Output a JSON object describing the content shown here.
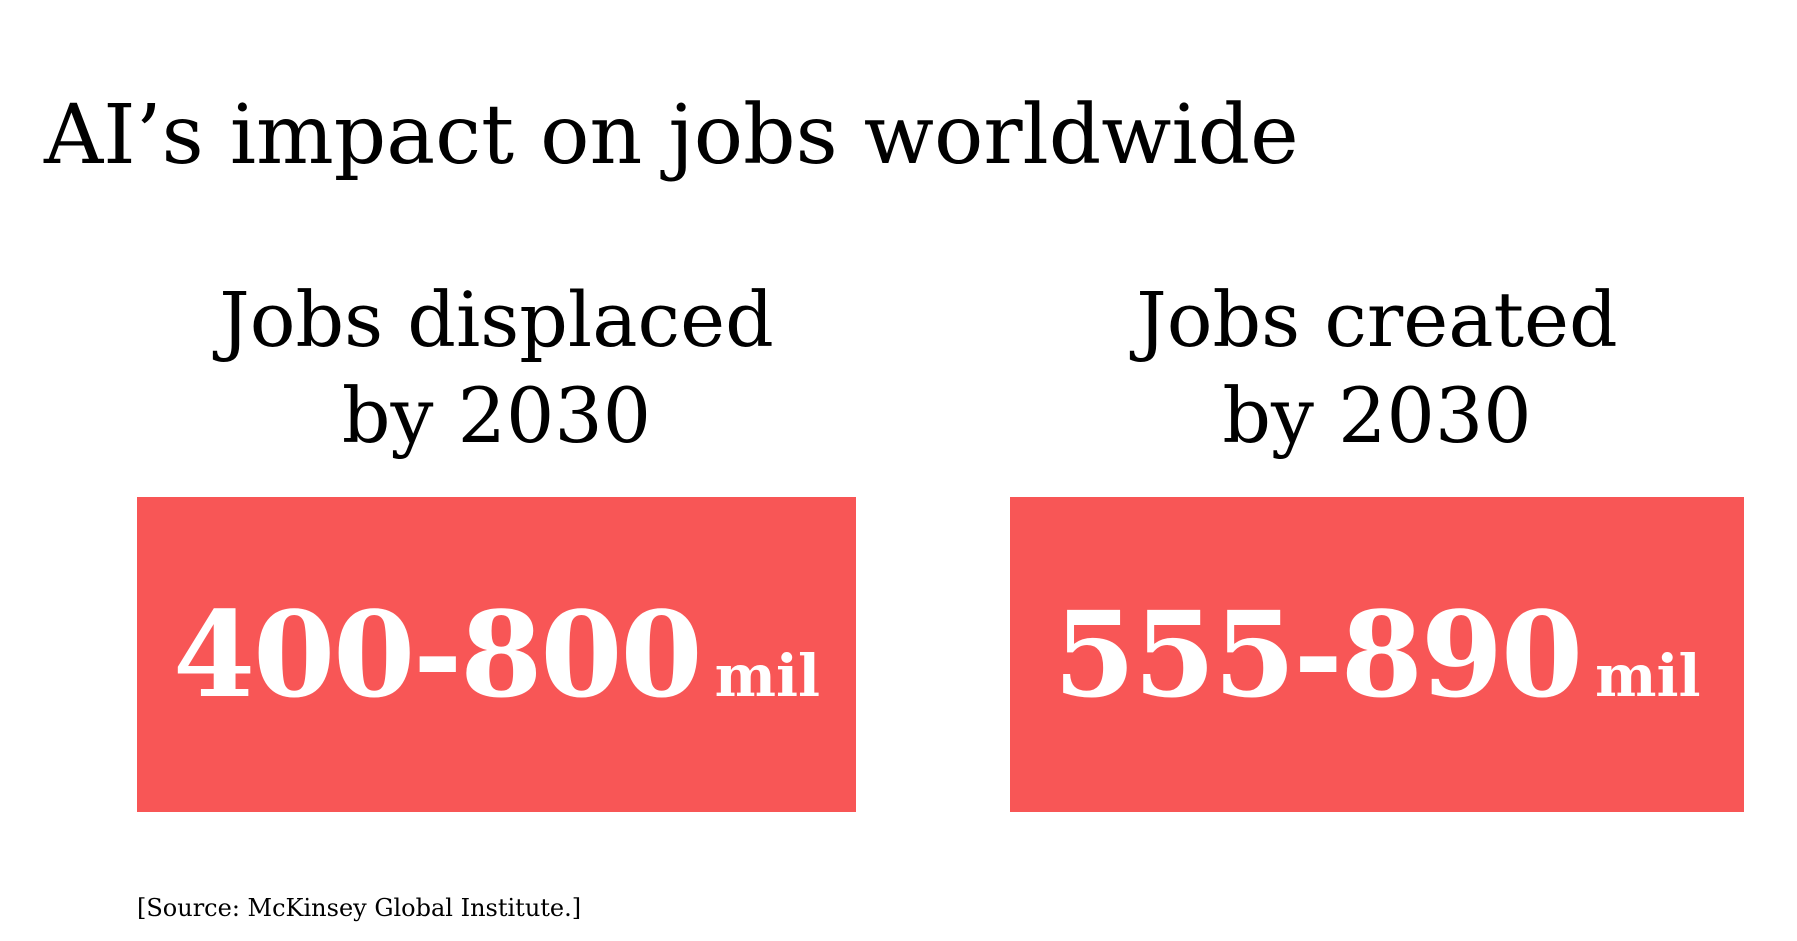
{
  "slide": {
    "title": "AI’s impact on jobs worldwide",
    "accent_color": "#f85656",
    "columns": [
      {
        "heading_line1": "Jobs displaced",
        "heading_line2": "by 2030",
        "value": "400-800",
        "unit": "mil"
      },
      {
        "heading_line1": "Jobs created",
        "heading_line2": "by 2030",
        "value": "555-890",
        "unit": "mil"
      }
    ],
    "source": "[Source: McKinsey Global Institute.]"
  }
}
